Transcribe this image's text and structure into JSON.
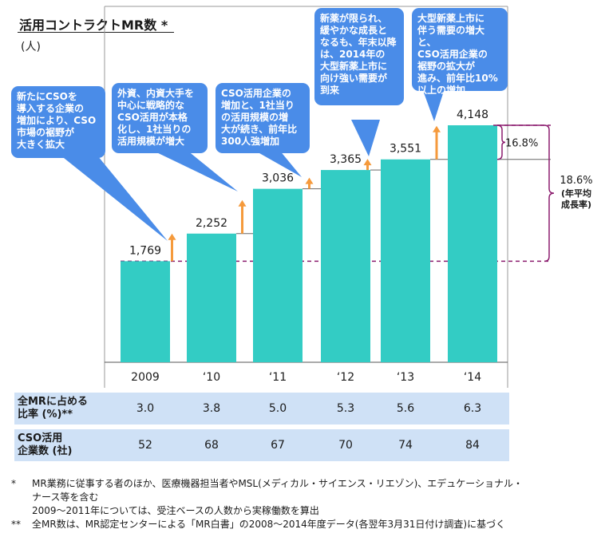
{
  "title": "活用コントラクトMR数 *",
  "unit": "(人)",
  "chart_data": {
    "type": "bar",
    "categories": [
      "2009",
      "‘10",
      "‘11",
      "‘12",
      "‘13",
      "‘14"
    ],
    "values": [
      1769,
      2252,
      3036,
      3365,
      3551,
      4148
    ],
    "value_labels": [
      "1,769",
      "2,252",
      "3,036",
      "3,365",
      "3,551",
      "4,148"
    ],
    "ylim": [
      0,
      4500
    ],
    "bar_color": "#33ccc4",
    "arrow_color": "#f59a3c",
    "bracket_color": "#8b1c6e",
    "growth_yoy_label": "16.8%",
    "cagr_label": "18.6%",
    "cagr_note": "(年平均\n成長率)",
    "annotations": [
      "新たにCSOを\n導入する企業の\n増加により、CSO\n市場の裾野が\n大きく拡大",
      "外資、内資大手を\n中心に戦略的な\nCSO活用が本格\n化し、1社当りの\n活用規模が増大",
      "CSO活用企業の\n増加と、1社当り\nの活用規模の増\n大が続き、前年比\n300人強増加",
      "新薬が限られ、\n緩やかな成長と\nなるも、年末以降\nは、2014年の\n大型新薬上市に\n向け強い需要が\n到来",
      "大型新薬上市に\n伴う需要の増大と、\nCSO活用企業の\n裾野の拡大が\n進み、前年比10%\n以上の増加"
    ]
  },
  "table": {
    "rows": [
      {
        "label": "全MRに占める\n比率 (%)**",
        "values": [
          "3.0",
          "3.8",
          "5.0",
          "5.3",
          "5.6",
          "6.3"
        ]
      },
      {
        "label": "CSO活用\n企業数 (社)",
        "values": [
          "52",
          "68",
          "67",
          "70",
          "74",
          "84"
        ]
      }
    ]
  },
  "notes": [
    {
      "mark": "*",
      "text": "MR業務に従事する者のほか、医療機器担当者やMSL(メディカル・サイエンス・リエゾン)、エデュケーショナル・"
    },
    {
      "mark": "",
      "text": "ナース等を含む"
    },
    {
      "mark": "",
      "text": "2009～2011年については、受注ベースの人数から実稼働数を算出"
    },
    {
      "mark": "**",
      "text": "全MR数は、MR認定センターによる「MR白書」の2008～2014年度データ(各翌年3月31日付け調査)に基づく"
    }
  ]
}
